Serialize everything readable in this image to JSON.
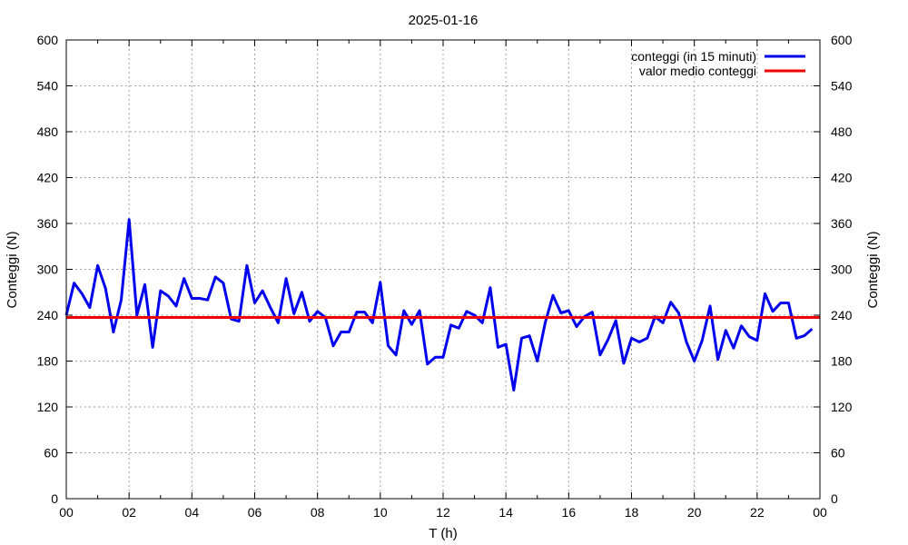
{
  "chart_data": {
    "type": "line",
    "title": "2025-01-16",
    "xlabel": "T (h)",
    "ylabel": "Conteggi (N)",
    "y2label": "Conteggi (N)",
    "xlim": [
      0,
      24
    ],
    "ylim": [
      0,
      600
    ],
    "grid": true,
    "legend_position": "top-right",
    "x_tick_labels": [
      "00",
      "02",
      "04",
      "06",
      "08",
      "10",
      "12",
      "14",
      "16",
      "18",
      "20",
      "22",
      "00"
    ],
    "y_ticks": [
      0,
      60,
      120,
      180,
      240,
      300,
      360,
      420,
      480,
      540,
      600
    ],
    "series": [
      {
        "name": "conteggi (in 15 minuti)",
        "color": "#0000ee",
        "x": [
          0.0,
          0.25,
          0.5,
          0.75,
          1.0,
          1.25,
          1.5,
          1.75,
          2.0,
          2.25,
          2.5,
          2.75,
          3.0,
          3.25,
          3.5,
          3.75,
          4.0,
          4.25,
          4.5,
          4.75,
          5.0,
          5.25,
          5.5,
          5.75,
          6.0,
          6.25,
          6.5,
          6.75,
          7.0,
          7.25,
          7.5,
          7.75,
          8.0,
          8.25,
          8.5,
          8.75,
          9.0,
          9.25,
          9.5,
          9.75,
          10.0,
          10.25,
          10.5,
          10.75,
          11.0,
          11.25,
          11.5,
          11.75,
          12.0,
          12.25,
          12.5,
          12.75,
          13.0,
          13.25,
          13.5,
          13.75,
          14.0,
          14.25,
          14.5,
          14.75,
          15.0,
          15.25,
          15.5,
          15.75,
          16.0,
          16.25,
          16.5,
          16.75,
          17.0,
          17.25,
          17.5,
          17.75,
          18.0,
          18.25,
          18.5,
          18.75,
          19.0,
          19.25,
          19.5,
          19.75,
          20.0,
          20.25,
          20.5,
          20.75,
          21.0,
          21.25,
          21.5,
          21.75,
          22.0,
          22.25,
          22.5,
          22.75,
          23.0,
          23.25,
          23.5,
          23.75
        ],
        "values": [
          240,
          282,
          268,
          250,
          305,
          275,
          218,
          260,
          365,
          240,
          280,
          198,
          272,
          265,
          252,
          288,
          262,
          262,
          260,
          290,
          282,
          235,
          232,
          305,
          256,
          272,
          250,
          230,
          288,
          242,
          270,
          232,
          245,
          237,
          200,
          218,
          218,
          244,
          244,
          230,
          283,
          200,
          188,
          246,
          228,
          246,
          176,
          185,
          185,
          227,
          223,
          245,
          240,
          230,
          276,
          198,
          202,
          142,
          210,
          213,
          180,
          230,
          266,
          243,
          246,
          225,
          238,
          244,
          188,
          208,
          233,
          177,
          210,
          205,
          210,
          238,
          230,
          257,
          243,
          205,
          180,
          207,
          252,
          182,
          220,
          197,
          226,
          212,
          207,
          268,
          245,
          256,
          256,
          210,
          213,
          222
        ]
      },
      {
        "name": "valor medio conteggi",
        "color": "#ee0000",
        "x": [
          0,
          24
        ],
        "values": [
          237,
          237
        ]
      }
    ]
  }
}
